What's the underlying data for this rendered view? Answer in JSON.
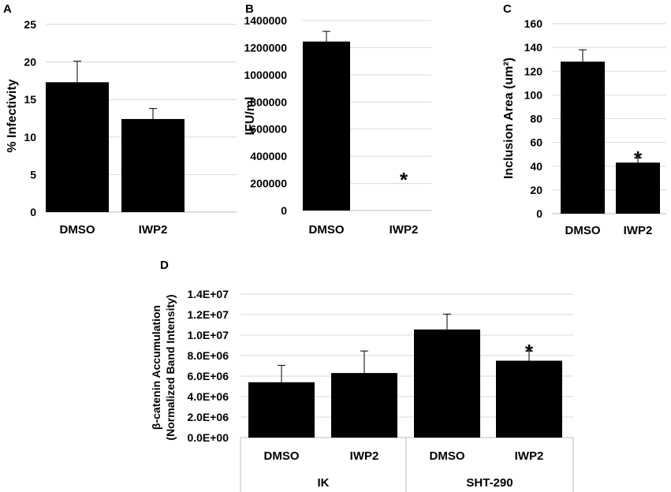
{
  "chart_data": [
    {
      "panel": "A",
      "type": "bar",
      "categories": [
        "DMSO",
        "IWP2"
      ],
      "values": [
        17.3,
        12.4
      ],
      "errors": [
        2.8,
        1.4
      ],
      "ylabel": "% Infectivity",
      "ylim": [
        0,
        25
      ],
      "yticks": [
        "0",
        "5",
        "10",
        "15",
        "20",
        "25"
      ],
      "significance": [
        "",
        ""
      ]
    },
    {
      "panel": "B",
      "type": "bar",
      "categories": [
        "DMSO",
        "IWP2"
      ],
      "values": [
        1245000,
        0
      ],
      "errors": [
        75000,
        0
      ],
      "ylabel": "IFU/ml",
      "ylim": [
        0,
        1400000
      ],
      "yticks": [
        "0",
        "200000",
        "400000",
        "600000",
        "800000",
        "1000000",
        "1200000",
        "1400000"
      ],
      "significance": [
        "",
        "*"
      ]
    },
    {
      "panel": "C",
      "type": "bar",
      "categories": [
        "DMSO",
        "IWP2"
      ],
      "values": [
        128,
        43
      ],
      "errors": [
        10,
        4
      ],
      "ylabel": "Inclusion Area (um²)",
      "ylim": [
        0,
        160
      ],
      "yticks": [
        "0",
        "20",
        "40",
        "60",
        "80",
        "100",
        "120",
        "140",
        "160"
      ],
      "significance": [
        "",
        "*"
      ]
    },
    {
      "panel": "D",
      "type": "bar",
      "categories": [
        "DMSO",
        "IWP2",
        "DMSO",
        "IWP2"
      ],
      "groups": [
        "IK",
        "SHT-290"
      ],
      "values": [
        5400000,
        6300000,
        10550000,
        7500000
      ],
      "errors": [
        1650000,
        2150000,
        1500000,
        950000
      ],
      "ylabel": "β-catenin Accumulation",
      "ylabel2": "(Normalized Band Intensity)",
      "ylim": [
        0,
        14000000
      ],
      "yticks": [
        "0.0E+00",
        "2.0E+06",
        "4.0E+06",
        "6.0E+06",
        "8.0E+06",
        "1.0E+07",
        "1.2E+07",
        "1.4E+07"
      ],
      "significance": [
        "",
        "",
        "",
        "*"
      ]
    }
  ]
}
